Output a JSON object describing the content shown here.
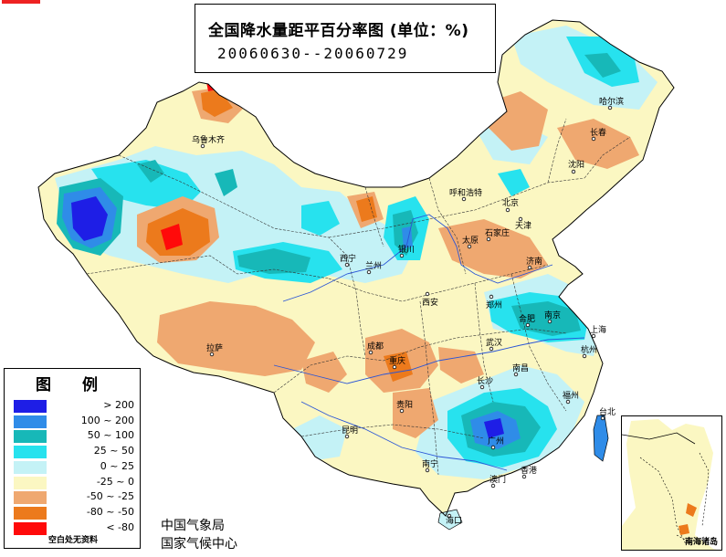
{
  "title": {
    "main": "全国降水量距平百分率图 (单位：%)",
    "period": "20060630--20060729"
  },
  "legend": {
    "title": "图 例",
    "items": [
      {
        "label": "> 200",
        "color": "#1e1ee6"
      },
      {
        "label": "100 ~ 200",
        "color": "#2f8ce8"
      },
      {
        "label": "50 ~ 100",
        "color": "#17b8b8"
      },
      {
        "label": "25 ~ 50",
        "color": "#27e2ee"
      },
      {
        "label": "0 ~ 25",
        "color": "#c4f2f6"
      },
      {
        "label": "-25 ~ 0",
        "color": "#fbf7c2"
      },
      {
        "label": "-50 ~ -25",
        "color": "#efa870"
      },
      {
        "label": "-80 ~ -50",
        "color": "#ec7a1c"
      },
      {
        "label": "< -80",
        "color": "#ff0a0a"
      }
    ],
    "note": "空白处无资料"
  },
  "org": {
    "line1": "中国气象局",
    "line2": "国家气候中心"
  },
  "inset": {
    "label": "南海诸岛"
  },
  "cities": [
    {
      "name": "乌鲁木齐"
    },
    {
      "name": "哈尔滨"
    },
    {
      "name": "长春"
    },
    {
      "name": "沈阳"
    },
    {
      "name": "呼和浩特"
    },
    {
      "name": "北京"
    },
    {
      "name": "天津"
    },
    {
      "name": "银川"
    },
    {
      "name": "太原"
    },
    {
      "name": "石家庄"
    },
    {
      "name": "西宁"
    },
    {
      "name": "兰州"
    },
    {
      "name": "济南"
    },
    {
      "name": "西安"
    },
    {
      "name": "郑州"
    },
    {
      "name": "合肥"
    },
    {
      "name": "南京"
    },
    {
      "name": "上海"
    },
    {
      "name": "拉萨"
    },
    {
      "name": "成都"
    },
    {
      "name": "重庆"
    },
    {
      "name": "武汉"
    },
    {
      "name": "杭州"
    },
    {
      "name": "南昌"
    },
    {
      "name": "长沙"
    },
    {
      "name": "福州"
    },
    {
      "name": "贵阳"
    },
    {
      "name": "台北"
    },
    {
      "name": "昆明"
    },
    {
      "name": "广州"
    },
    {
      "name": "南宁"
    },
    {
      "name": "香港"
    },
    {
      "name": "澳门"
    },
    {
      "name": "海口"
    }
  ]
}
